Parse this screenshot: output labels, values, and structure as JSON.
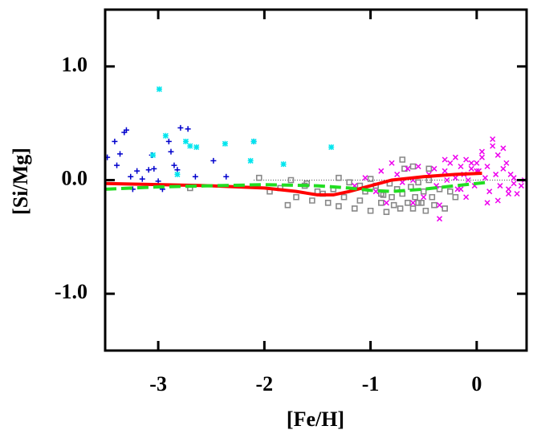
{
  "chart_data": {
    "type": "scatter",
    "x_label": "[Fe/H]",
    "y_label": "[Si/Mg]",
    "xlim": [
      -3.5,
      0.47
    ],
    "ylim": [
      -1.5,
      1.5
    ],
    "xticks": [
      -3,
      -2,
      -1,
      0
    ],
    "yticks": [
      {
        "value": 1,
        "label": "1.0"
      },
      {
        "value": 0,
        "label": "0.0"
      },
      {
        "value": -1,
        "label": "-1.0"
      }
    ],
    "reference_line": {
      "y": 0,
      "x": [
        -2.1,
        0.4
      ]
    },
    "series": [
      {
        "marker": "plus",
        "color": "#0000cc",
        "x": [
          -3.48,
          -3.41,
          -3.36,
          -3.32,
          -3.3,
          -3.39,
          -3.26,
          -3.2,
          -3.15,
          -3.09,
          -3.06,
          -3.04,
          -3.0,
          -2.96,
          -2.9,
          -2.88,
          -2.85,
          -2.82,
          -2.79,
          -2.72,
          -2.65,
          -2.48,
          -2.36,
          -2.1,
          -3.24
        ],
        "values": [
          0.2,
          0.34,
          0.23,
          0.42,
          0.44,
          0.13,
          0.03,
          0.08,
          0.01,
          0.09,
          0.22,
          0.1,
          -0.01,
          -0.08,
          0.34,
          0.25,
          0.13,
          0.09,
          0.46,
          0.45,
          0.03,
          0.17,
          0.03,
          0.34,
          -0.08
        ]
      },
      {
        "marker": "star",
        "color": "#00e5ee",
        "x": [
          -2.99,
          -2.93,
          -3.05,
          -2.82,
          -2.7,
          -2.64,
          -2.37,
          -2.13,
          -2.1,
          -1.82,
          -1.37,
          -2.74
        ],
        "values": [
          0.8,
          0.39,
          0.22,
          0.05,
          0.3,
          0.29,
          0.32,
          0.17,
          0.34,
          0.14,
          0.29,
          0.34
        ]
      },
      {
        "marker": "square",
        "color": "#888888",
        "x": [
          -2.05,
          -1.95,
          -1.85,
          -1.78,
          -1.7,
          -1.62,
          -1.55,
          -1.5,
          -1.45,
          -1.4,
          -1.35,
          -1.3,
          -1.25,
          -1.2,
          -1.15,
          -1.1,
          -1.05,
          -1.0,
          -0.95,
          -0.9,
          -0.88,
          -0.85,
          -0.82,
          -0.8,
          -0.78,
          -0.75,
          -0.72,
          -0.7,
          -0.68,
          -0.65,
          -0.62,
          -0.6,
          -0.58,
          -0.55,
          -0.52,
          -0.5,
          -0.48,
          -0.45,
          -0.42,
          -0.4,
          -0.35,
          -0.3,
          -0.25,
          -0.2,
          -1.75,
          -1.6,
          -1.3,
          -1.1,
          -0.9,
          -0.7,
          -0.6,
          -0.45,
          -2.7,
          -0.55,
          -1.0
        ],
        "values": [
          0.02,
          -0.1,
          -0.07,
          -0.22,
          -0.15,
          -0.05,
          -0.18,
          -0.1,
          -0.12,
          -0.2,
          -0.08,
          -0.23,
          -0.15,
          -0.02,
          -0.25,
          -0.18,
          -0.1,
          -0.27,
          -0.05,
          -0.2,
          -0.13,
          -0.28,
          -0.03,
          -0.15,
          -0.22,
          -0.08,
          -0.25,
          -0.12,
          0.1,
          -0.2,
          -0.06,
          -0.25,
          -0.15,
          -0.02,
          -0.2,
          -0.1,
          -0.27,
          0.0,
          -0.15,
          -0.22,
          -0.08,
          -0.25,
          -0.1,
          -0.15,
          0.0,
          -0.03,
          0.02,
          -0.05,
          -0.12,
          0.18,
          0.12,
          0.1,
          -0.07,
          -0.2,
          0.01
        ]
      },
      {
        "marker": "cross",
        "color": "#ee00ee",
        "x": [
          -1.15,
          -1.05,
          -0.95,
          -0.9,
          -0.85,
          -0.8,
          -0.75,
          -0.7,
          -0.65,
          -0.6,
          -0.55,
          -0.5,
          -0.45,
          -0.4,
          -0.38,
          -0.35,
          -0.3,
          -0.28,
          -0.25,
          -0.2,
          -0.18,
          -0.15,
          -0.12,
          -0.1,
          -0.08,
          -0.05,
          -0.02,
          0.0,
          0.02,
          0.05,
          0.08,
          0.1,
          0.12,
          0.15,
          0.18,
          0.2,
          0.22,
          0.25,
          0.28,
          0.3,
          0.32,
          0.35,
          0.38,
          0.42,
          0.45,
          -0.35,
          -0.2,
          -0.1,
          0.05,
          0.15,
          0.2,
          0.25,
          0.1,
          -0.05,
          -0.3,
          -0.15,
          0.3,
          0.0,
          0.35,
          -0.6
        ],
        "values": [
          -0.05,
          0.02,
          -0.1,
          0.08,
          -0.2,
          0.15,
          0.05,
          -0.02,
          0.1,
          0.0,
          0.12,
          -0.15,
          0.05,
          0.1,
          -0.05,
          -0.34,
          0.08,
          0.0,
          0.15,
          0.02,
          -0.08,
          0.12,
          0.05,
          0.18,
          0.0,
          0.1,
          -0.05,
          0.15,
          0.08,
          0.2,
          0.02,
          0.12,
          -0.1,
          0.3,
          0.05,
          0.22,
          -0.05,
          0.1,
          0.15,
          -0.08,
          0.05,
          0.02,
          -0.12,
          -0.05,
          0.0,
          -0.22,
          0.2,
          -0.15,
          0.25,
          0.36,
          -0.18,
          0.28,
          -0.2,
          0.15,
          0.18,
          -0.08,
          -0.12,
          0.08,
          -0.03,
          -0.2
        ]
      },
      {
        "marker": "line",
        "style": "solid",
        "color": "#ff0000",
        "x": [
          -3.5,
          -3.0,
          -2.5,
          -2.0,
          -1.7,
          -1.5,
          -1.35,
          -1.2,
          -1.0,
          -0.8,
          -0.5,
          -0.2,
          0.05
        ],
        "values": [
          -0.03,
          -0.04,
          -0.05,
          -0.07,
          -0.1,
          -0.13,
          -0.13,
          -0.1,
          -0.05,
          0.0,
          0.03,
          0.05,
          0.06
        ]
      },
      {
        "marker": "line",
        "style": "dashed",
        "color": "#22dd22",
        "x": [
          -3.5,
          -3.0,
          -2.5,
          -2.0,
          -1.5,
          -1.2,
          -1.0,
          -0.8,
          -0.5,
          -0.2,
          0.1
        ],
        "values": [
          -0.08,
          -0.06,
          -0.05,
          -0.04,
          -0.05,
          -0.07,
          -0.09,
          -0.1,
          -0.08,
          -0.05,
          -0.02
        ]
      }
    ]
  }
}
